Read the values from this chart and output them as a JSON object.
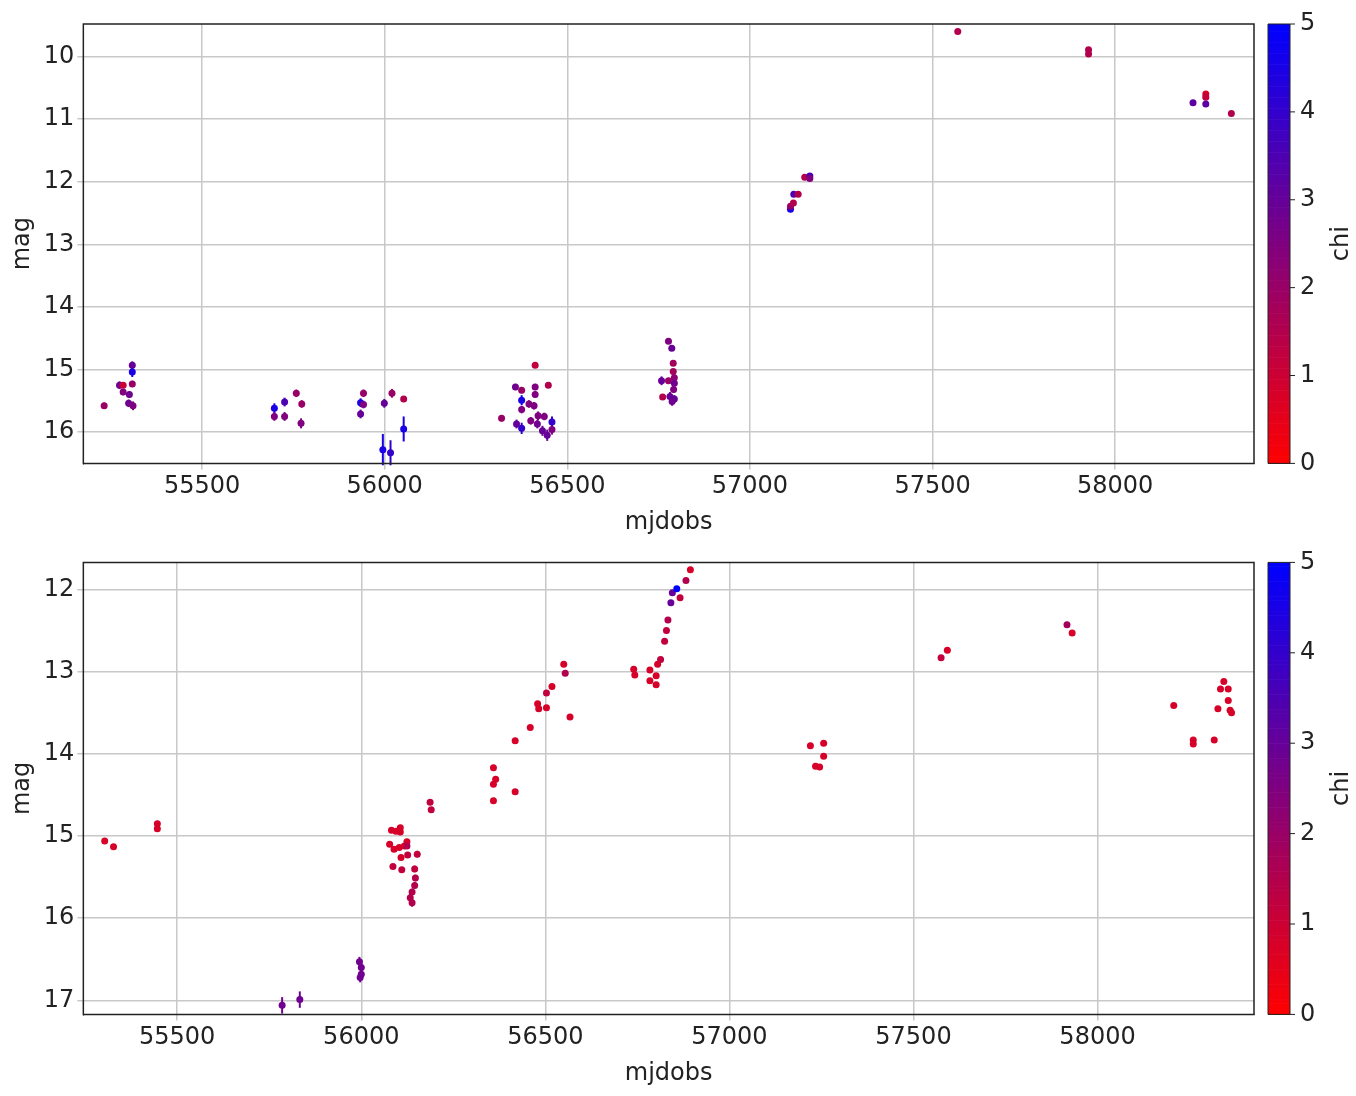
{
  "chart_data": [
    {
      "type": "scatter",
      "xlabel": "mjdobs",
      "ylabel": "mag",
      "clabel": "chi",
      "clim": [
        0,
        5
      ],
      "cticks": [
        0,
        1,
        2,
        3,
        4,
        5
      ],
      "grid": true,
      "marker": "circle",
      "xlim": [
        55175,
        58380
      ],
      "ylim": [
        16.5,
        9.48
      ],
      "xticks": [
        55500,
        56000,
        56500,
        57000,
        57500,
        58000
      ],
      "yticks": [
        10,
        11,
        12,
        13,
        14,
        15,
        16
      ],
      "x": [
        55232,
        55274,
        55284,
        55284,
        55301,
        55309,
        55309,
        55309,
        55299,
        55311,
        55698,
        55698,
        55726,
        55726,
        55758,
        55773,
        55771,
        55942,
        55934,
        55942,
        55934,
        55999,
        56020,
        56052,
        56052,
        55995,
        56016,
        56320,
        56358,
        56375,
        56375,
        56375,
        56361,
        56375,
        56395,
        56409,
        56412,
        56412,
        56412,
        56448,
        56420,
        56437,
        56418,
        56432,
        56445,
        56458,
        56458,
        56400,
        56777,
        56786,
        56790,
        56790,
        56793,
        56777,
        56758,
        56793,
        56791,
        56761,
        56781,
        56793,
        56787,
        57111,
        57111,
        57119,
        57120,
        57132,
        57150,
        57164,
        57164,
        57569,
        57927,
        57927,
        58213,
        58248,
        58248,
        58248,
        58318
      ],
      "values": [
        15.58,
        15.25,
        15.25,
        15.36,
        15.4,
        15.23,
        14.93,
        15.04,
        15.54,
        15.58,
        15.62,
        15.75,
        15.52,
        15.75,
        15.38,
        15.55,
        15.86,
        15.38,
        15.53,
        15.56,
        15.71,
        15.54,
        15.38,
        15.47,
        15.95,
        16.28,
        16.33,
        15.78,
        15.28,
        15.33,
        15.49,
        15.64,
        15.87,
        15.94,
        15.55,
        15.58,
        15.28,
        14.93,
        15.4,
        15.25,
        15.74,
        15.75,
        15.87,
        15.98,
        16.05,
        15.84,
        15.96,
        15.82,
        14.55,
        14.66,
        14.9,
        15.03,
        15.13,
        15.18,
        15.18,
        15.22,
        15.32,
        15.44,
        15.43,
        15.47,
        15.51,
        12.44,
        12.39,
        12.34,
        12.2,
        12.2,
        11.93,
        11.91,
        11.95,
        9.6,
        9.89,
        9.96,
        10.74,
        10.6,
        10.65,
        10.76,
        10.91
      ],
      "errors": [
        0.05,
        0.06,
        null,
        0.05,
        0.05,
        0.05,
        0.06,
        0.08,
        0.06,
        0.07,
        0.08,
        0.07,
        0.07,
        0.07,
        0.06,
        0.06,
        0.08,
        0.06,
        0.07,
        0.06,
        0.07,
        0.07,
        0.07,
        null,
        0.2,
        0.25,
        0.2,
        0.05,
        0.05,
        0.05,
        0.08,
        0.06,
        0.07,
        0.09,
        0.06,
        0.06,
        0.05,
        null,
        0.05,
        null,
        0.07,
        0.06,
        0.07,
        0.08,
        0.09,
        0.09,
        0.08,
        0.06,
        0.03,
        0.03,
        null,
        null,
        0.05,
        0.03,
        0.07,
        0.05,
        0.05,
        0.04,
        0.07,
        0.06,
        0.07,
        null,
        null,
        null,
        null,
        null,
        null,
        null,
        null,
        null,
        null,
        null,
        null,
        null,
        null,
        null,
        null
      ],
      "cvalues": [
        2,
        2.8,
        1,
        2.5,
        2.8,
        2,
        3,
        4.5,
        2.8,
        2.5,
        4.5,
        2.5,
        3.5,
        2.5,
        2,
        2,
        2.5,
        2,
        4.5,
        2.5,
        3,
        3,
        2,
        1.5,
        4.5,
        4.5,
        4,
        2,
        2.8,
        2,
        4.5,
        2.5,
        3,
        4,
        2.5,
        2.5,
        2.5,
        1.2,
        2.5,
        1.5,
        2.5,
        2.5,
        2.8,
        3,
        3,
        4,
        2.5,
        2.5,
        2.5,
        3,
        1.8,
        1.8,
        2.2,
        2,
        3,
        2.8,
        2.5,
        1.5,
        3,
        3,
        2.8,
        4.5,
        2,
        1.5,
        3.5,
        1.5,
        1.5,
        3.5,
        2.5,
        1.5,
        1.5,
        1.5,
        3.2,
        0.8,
        1.2,
        3.2,
        1.5
      ]
    },
    {
      "type": "scatter",
      "xlabel": "mjdobs",
      "ylabel": "mag",
      "clabel": "chi",
      "clim": [
        0,
        5
      ],
      "cticks": [
        0,
        1,
        2,
        3,
        4,
        5
      ],
      "grid": true,
      "marker": "circle",
      "xlim": [
        55245,
        58425
      ],
      "ylim": [
        17.17,
        11.67
      ],
      "xticks": [
        55500,
        56000,
        56500,
        57000,
        57500,
        58000
      ],
      "yticks": [
        12,
        13,
        14,
        15,
        16,
        17
      ],
      "x": [
        55303,
        55327,
        55446,
        55446,
        55785,
        55833,
        55995,
        56000,
        56000,
        55997,
        56082,
        56094,
        56106,
        56106,
        56077,
        56089,
        56103,
        56117,
        56124,
        56124,
        56108,
        56126,
        56152,
        56086,
        56110,
        56145,
        56147,
        56145,
        56138,
        56133,
        56138,
        56187,
        56190,
        56359,
        56365,
        56359,
        56359,
        56418,
        56418,
        56459,
        56479,
        56482,
        56503,
        56503,
        56518,
        56550,
        56554,
        56567,
        56740,
        56743,
        56784,
        56801,
        56784,
        56801,
        56805,
        56813,
        56824,
        56829,
        56833,
        56841,
        56845,
        56857,
        56866,
        56882,
        56894,
        57220,
        57256,
        57256,
        57234,
        57245,
        57575,
        57592,
        57917,
        57931,
        58207,
        58260,
        58260,
        58317,
        58327,
        58334,
        58343,
        58355,
        58355,
        58360,
        58364
      ],
      "values": [
        15.06,
        15.13,
        14.85,
        14.91,
        17.06,
        16.99,
        16.53,
        16.6,
        16.68,
        16.72,
        14.93,
        14.94,
        14.9,
        14.95,
        15.1,
        15.16,
        15.14,
        15.12,
        15.07,
        15.12,
        15.26,
        15.23,
        15.22,
        15.37,
        15.41,
        15.4,
        15.51,
        15.6,
        15.68,
        15.75,
        15.81,
        14.59,
        14.68,
        14.17,
        14.31,
        14.37,
        14.57,
        13.84,
        14.46,
        13.68,
        13.39,
        13.45,
        13.26,
        13.44,
        13.18,
        12.91,
        13.02,
        13.55,
        12.97,
        13.04,
        12.98,
        13.05,
        13.11,
        13.16,
        12.91,
        12.85,
        12.63,
        12.5,
        12.37,
        12.16,
        12.04,
        11.99,
        12.1,
        11.89,
        11.76,
        13.9,
        13.87,
        14.03,
        14.15,
        14.16,
        12.83,
        12.74,
        12.43,
        12.53,
        13.41,
        13.83,
        13.88,
        13.83,
        13.45,
        13.21,
        13.12,
        13.21,
        13.35,
        13.47,
        13.5
      ],
      "errors": [
        null,
        null,
        null,
        null,
        0.1,
        0.1,
        0.06,
        0.06,
        0.06,
        0.06,
        null,
        null,
        null,
        null,
        null,
        null,
        null,
        null,
        null,
        null,
        null,
        null,
        0.04,
        null,
        null,
        0.04,
        0.04,
        0.04,
        0.04,
        0.05,
        0.05,
        null,
        null,
        null,
        null,
        null,
        null,
        null,
        null,
        null,
        null,
        null,
        null,
        null,
        null,
        null,
        null,
        null,
        null,
        null,
        null,
        null,
        null,
        null,
        null,
        null,
        null,
        null,
        null,
        null,
        null,
        null,
        null,
        null,
        null,
        null,
        null,
        null,
        null,
        null,
        null,
        null,
        null,
        null,
        null,
        null,
        null,
        null,
        null,
        null,
        null,
        null,
        null,
        null,
        null
      ],
      "cvalues": [
        0.8,
        0.8,
        0.8,
        0.8,
        2.8,
        2.8,
        2.8,
        2.8,
        2.8,
        2.8,
        0.8,
        0.8,
        0.8,
        0.8,
        0.8,
        0.8,
        0.8,
        0.8,
        0.8,
        1.5,
        0.8,
        1.2,
        1.2,
        1.2,
        1.2,
        1.2,
        1.5,
        1.5,
        1.5,
        1.5,
        1.5,
        1.2,
        1.2,
        0.8,
        0.8,
        0.8,
        0.8,
        0.8,
        0.8,
        0.8,
        0.8,
        0.8,
        1.2,
        0.8,
        0.8,
        0.8,
        1.5,
        0.8,
        0.8,
        0.8,
        0.8,
        0.8,
        0.8,
        0.8,
        0.8,
        1.2,
        1.2,
        1.2,
        1.5,
        3,
        3,
        5,
        1.2,
        1.5,
        0.8,
        0.8,
        0.8,
        0.8,
        0.8,
        0.8,
        1.2,
        0.8,
        1.8,
        0.8,
        0.8,
        0.8,
        0.8,
        0.8,
        0.8,
        0.8,
        0.8,
        0.8,
        0.8,
        0.8,
        0.8
      ]
    }
  ]
}
